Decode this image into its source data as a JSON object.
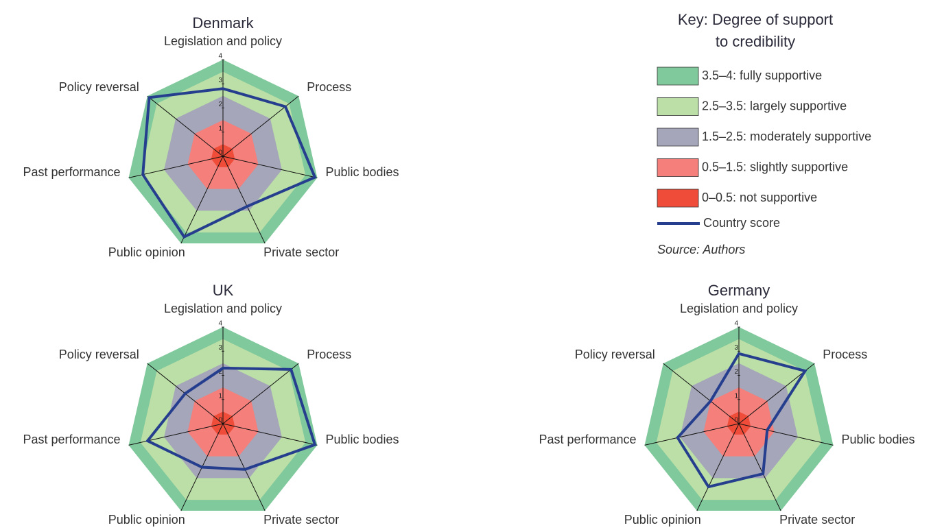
{
  "chart_data": [
    {
      "type": "radar",
      "title": "Denmark",
      "categories": [
        "Legislation and policy",
        "Process",
        "Public bodies",
        "Private sector",
        "Public opinion",
        "Past performance",
        "Policy reversal"
      ],
      "values": [
        2.8,
        3.3,
        3.9,
        2.3,
        3.7,
        3.4,
        3.9
      ],
      "color": "#263e8e",
      "ylim": [
        0,
        4
      ],
      "yticks": [
        0,
        1,
        2,
        3,
        4
      ]
    },
    {
      "type": "radar",
      "title": "UK",
      "categories": [
        "Legislation and policy",
        "Process",
        "Public bodies",
        "Private sector",
        "Public opinion",
        "Past performance",
        "Policy reversal"
      ],
      "values": [
        2.3,
        3.6,
        3.9,
        2.1,
        2.0,
        3.2,
        2.0
      ],
      "color": "#263e8e",
      "ylim": [
        0,
        4
      ],
      "yticks": [
        0,
        1,
        2,
        3,
        4
      ]
    },
    {
      "type": "radar",
      "title": "Germany",
      "categories": [
        "Legislation and policy",
        "Process",
        "Public bodies",
        "Private sector",
        "Public opinion",
        "Past performance",
        "Policy reversal"
      ],
      "values": [
        2.9,
        3.5,
        1.2,
        2.3,
        2.9,
        2.6,
        1.5
      ],
      "color": "#263e8e",
      "ylim": [
        0,
        4
      ],
      "yticks": [
        0,
        1,
        2,
        3,
        4
      ]
    }
  ],
  "legend": {
    "title": [
      "Key: Degree of support",
      "to credibility"
    ],
    "bands": [
      {
        "from": 3.5,
        "to": 4,
        "color": "#80c99c",
        "label": "3.5–4: fully supportive"
      },
      {
        "from": 2.5,
        "to": 3.5,
        "color": "#bbdfa6",
        "label": "2.5–3.5: largely supportive"
      },
      {
        "from": 1.5,
        "to": 2.5,
        "color": "#a5a6b9",
        "label": "1.5–2.5: moderately supportive"
      },
      {
        "from": 0.5,
        "to": 1.5,
        "color": "#f47f7b",
        "label": "0.5–1.5: slightly supportive"
      },
      {
        "from": 0,
        "to": 0.5,
        "color": "#ef4d39",
        "label": "0–0.5: not supportive"
      }
    ],
    "line_label": "Country score",
    "source": "Source: Authors"
  }
}
